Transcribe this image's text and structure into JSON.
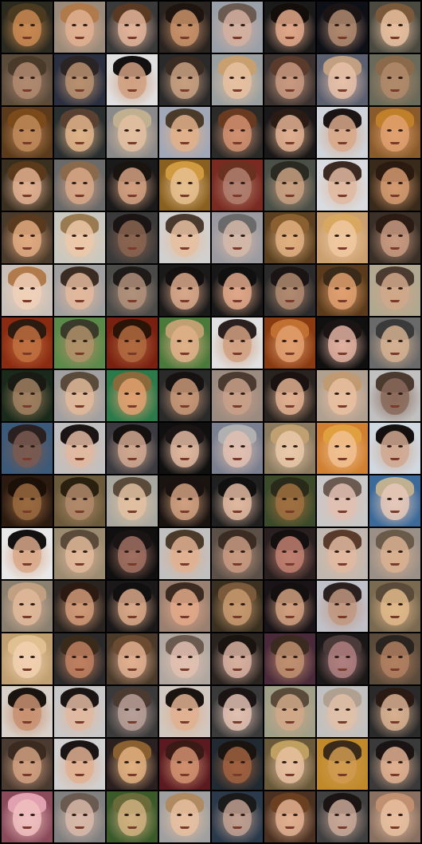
{
  "tiles": [
    {
      "bg": "#2b2a1e",
      "hair": "#4a3a1f",
      "skin": "#c98a52"
    },
    {
      "bg": "#9a8a7a",
      "hair": "#b07a4a",
      "skin": "#e0b090"
    },
    {
      "bg": "#3a3a3a",
      "hair": "#5a3a22",
      "skin": "#e2b49a"
    },
    {
      "bg": "#2a2420",
      "hair": "#1e1410",
      "skin": "#c9926a"
    },
    {
      "bg": "#9aa0a8",
      "hair": "#6a5a50",
      "skin": "#d4b0a0"
    },
    {
      "bg": "#1a1a1a",
      "hair": "#140e0a",
      "skin": "#e0a88a"
    },
    {
      "bg": "#0e1018",
      "hair": "#1a1414",
      "skin": "#b08a70"
    },
    {
      "bg": "#4a4a40",
      "hair": "#7a5a3a",
      "skin": "#e8c0a0"
    },
    {
      "bg": "#5a4a3a",
      "hair": "#4a3a2a",
      "skin": "#b08a70"
    },
    {
      "bg": "#2a3040",
      "hair": "#2a2424",
      "skin": "#b99070"
    },
    {
      "bg": "#e0e0e0",
      "hair": "#121010",
      "skin": "#d0a080"
    },
    {
      "bg": "#2a2a2a",
      "hair": "#3a2c22",
      "skin": "#c8a080"
    },
    {
      "bg": "#9aa0a0",
      "hair": "#c8a070",
      "skin": "#e6c0a0"
    },
    {
      "bg": "#3a3230",
      "hair": "#5a3a2a",
      "skin": "#c89a80"
    },
    {
      "bg": "#5a6070",
      "hair": "#c0a080",
      "skin": "#e6c0a8"
    },
    {
      "bg": "#6a6a5a",
      "hair": "#8a6a4a",
      "skin": "#b08a6a"
    },
    {
      "bg": "#5a3a1a",
      "hair": "#7a4a1a",
      "skin": "#c08a5a"
    },
    {
      "bg": "#2a3030",
      "hair": "#5a4030",
      "skin": "#e0b48a"
    },
    {
      "bg": "#8a8a8a",
      "hair": "#c0b090",
      "skin": "#e2c0a0"
    },
    {
      "bg": "#a0a8b8",
      "hair": "#4a3a2a",
      "skin": "#e0b08a"
    },
    {
      "bg": "#2a2a28",
      "hair": "#6a3a20",
      "skin": "#d09070"
    },
    {
      "bg": "#1a1818",
      "hair": "#2a1c14",
      "skin": "#e0b090"
    },
    {
      "bg": "#cfd4da",
      "hair": "#1a1414",
      "skin": "#d8a888"
    },
    {
      "bg": "#8a5a2a",
      "hair": "#c0802a",
      "skin": "#e0a070"
    },
    {
      "bg": "#3a3020",
      "hair": "#5a3a1a",
      "skin": "#e0b090"
    },
    {
      "bg": "#6a6a6a",
      "hair": "#8a6a4a",
      "skin": "#d8a888"
    },
    {
      "bg": "#1a1a1a",
      "hair": "#1a1410",
      "skin": "#d2a080"
    },
    {
      "bg": "#8a6020",
      "hair": "#d09a40",
      "skin": "#e6c090"
    },
    {
      "bg": "#7a2a20",
      "hair": "#6a3020",
      "skin": "#b08070"
    },
    {
      "bg": "#4a5048",
      "hair": "#2a2a22",
      "skin": "#c8a080"
    },
    {
      "bg": "#d8dce0",
      "hair": "#3a2a22",
      "skin": "#e0b8a0"
    },
    {
      "bg": "#3a2a1a",
      "hair": "#2a1a10",
      "skin": "#d49a70"
    },
    {
      "bg": "#4a3a2a",
      "hair": "#5a3a1e",
      "skin": "#e0aa80"
    },
    {
      "bg": "#c8c8c0",
      "hair": "#9a7a50",
      "skin": "#ecc8a8"
    },
    {
      "bg": "#3a3a3a",
      "hair": "#1a1414",
      "skin": "#8a6450"
    },
    {
      "bg": "#d0d0d0",
      "hair": "#4a3a2e",
      "skin": "#e6c0a0"
    },
    {
      "bg": "#9a9aa0",
      "hair": "#6a6a6a",
      "skin": "#d4b8a8"
    },
    {
      "bg": "#5a4020",
      "hair": "#8a6030",
      "skin": "#e0b080"
    },
    {
      "bg": "#caa070",
      "hair": "#d8a860",
      "skin": "#f0c8a0"
    },
    {
      "bg": "#3a3028",
      "hair": "#2a1c14",
      "skin": "#c89a80"
    },
    {
      "bg": "#c8c0b8",
      "hair": "#b07a4a",
      "skin": "#f0d0b8"
    },
    {
      "bg": "#a0a0a0",
      "hair": "#3a2c22",
      "skin": "#e2b89c"
    },
    {
      "bg": "#4a4a48",
      "hair": "#1e1a18",
      "skin": "#b0907a"
    },
    {
      "bg": "#1a1a1a",
      "hair": "#141010",
      "skin": "#d8a88a"
    },
    {
      "bg": "#181818",
      "hair": "#101010",
      "skin": "#e0a88a"
    },
    {
      "bg": "#2a2a2a",
      "hair": "#1a1414",
      "skin": "#b08a70"
    },
    {
      "bg": "#5a3a1a",
      "hair": "#3a2a1a",
      "skin": "#e0a070"
    },
    {
      "bg": "#b0a890",
      "hair": "#4a3a30",
      "skin": "#d0a88a"
    },
    {
      "bg": "#8a2a10",
      "hair": "#2a1a10",
      "skin": "#c07040"
    },
    {
      "bg": "#5a8a4a",
      "hair": "#3a3a2a",
      "skin": "#b0906a"
    },
    {
      "bg": "#7a2010",
      "hair": "#2a1408",
      "skin": "#b06a40"
    },
    {
      "bg": "#4a7a3a",
      "hair": "#c0a070",
      "skin": "#e0b08a"
    },
    {
      "bg": "#e0e0e0",
      "hair": "#2a2020",
      "skin": "#d0a080"
    },
    {
      "bg": "#8a3a10",
      "hair": "#c07030",
      "skin": "#e0a070"
    },
    {
      "bg": "#101010",
      "hair": "#1a1414",
      "skin": "#e0b0a0"
    },
    {
      "bg": "#6a6a6a",
      "hair": "#3a3a3a",
      "skin": "#d4b090"
    },
    {
      "bg": "#1a2a1a",
      "hair": "#1a1a14",
      "skin": "#a08060"
    },
    {
      "bg": "#a0a0a0",
      "hair": "#5a4a3a",
      "skin": "#e0b89a"
    },
    {
      "bg": "#2a7a4a",
      "hair": "#8a6a3a",
      "skin": "#e0a070"
    },
    {
      "bg": "#2a2a2a",
      "hair": "#161212",
      "skin": "#c89878"
    },
    {
      "bg": "#9a8a80",
      "hair": "#4a3a30",
      "skin": "#c8a088"
    },
    {
      "bg": "#2a2420",
      "hair": "#1a1210",
      "skin": "#e0b090"
    },
    {
      "bg": "#b0a090",
      "hair": "#c09a70",
      "skin": "#e8c0a0"
    },
    {
      "bg": "#c0c0c0",
      "hair": "#4a3a30",
      "skin": "#8a6a5a"
    },
    {
      "bg": "#3a5a7a",
      "hair": "#2a2020",
      "skin": "#7a5a50"
    },
    {
      "bg": "#c0c0c0",
      "hair": "#1a1414",
      "skin": "#e0b8a0"
    },
    {
      "bg": "#3a3a40",
      "hair": "#141010",
      "skin": "#d0a890"
    },
    {
      "bg": "#101010",
      "hair": "#1a1414",
      "skin": "#e0b8a0"
    },
    {
      "bg": "#7a8090",
      "hair": "#b0b0b0",
      "skin": "#e0c0b0"
    },
    {
      "bg": "#8a7a60",
      "hair": "#c0a070",
      "skin": "#e8c8a8"
    },
    {
      "bg": "#d08030",
      "hair": "#e0a040",
      "skin": "#f0c090"
    },
    {
      "bg": "#d0d8e0",
      "hair": "#141010",
      "skin": "#d0a890"
    },
    {
      "bg": "#2a1a10",
      "hair": "#1a1008",
      "skin": "#9a6a40"
    },
    {
      "bg": "#6a5a3a",
      "hair": "#2a2010",
      "skin": "#b08a6a"
    },
    {
      "bg": "#a8a8a0",
      "hair": "#5a4a3a",
      "skin": "#e0c0a0"
    },
    {
      "bg": "#1a1410",
      "hair": "#1a1210",
      "skin": "#d0a080"
    },
    {
      "bg": "#202020",
      "hair": "#101010",
      "skin": "#e0b8a0"
    },
    {
      "bg": "#3a4a2a",
      "hair": "#2a2a1a",
      "skin": "#a07040"
    },
    {
      "bg": "#c8c8c8",
      "hair": "#6a5a50",
      "skin": "#e0c0b0"
    },
    {
      "bg": "#3a6a9a",
      "hair": "#c0b090",
      "skin": "#e6c8b8"
    },
    {
      "bg": "#e8e8e8",
      "hair": "#121010",
      "skin": "#d8a888"
    },
    {
      "bg": "#9a8a70",
      "hair": "#5a4a3a",
      "skin": "#e0b89a"
    },
    {
      "bg": "#101010",
      "hair": "#1a1414",
      "skin": "#a07060"
    },
    {
      "bg": "#c0c0c0",
      "hair": "#4a3a2a",
      "skin": "#e0b090"
    },
    {
      "bg": "#5a5048",
      "hair": "#3a2c22",
      "skin": "#c89a80"
    },
    {
      "bg": "#2a2020",
      "hair": "#141010",
      "skin": "#c08070"
    },
    {
      "bg": "#c0b8b0",
      "hair": "#5a3a2a",
      "skin": "#e0b8a0"
    },
    {
      "bg": "#9a9088",
      "hair": "#6a5a4a",
      "skin": "#d8b090"
    },
    {
      "bg": "#8a8070",
      "hair": "#c0a080",
      "skin": "#e0b89a"
    },
    {
      "bg": "#2a2420",
      "hair": "#2a1a12",
      "skin": "#d09a78"
    },
    {
      "bg": "#1a1818",
      "hair": "#101010",
      "skin": "#d8a888"
    },
    {
      "bg": "#9a8070",
      "hair": "#3a2a20",
      "skin": "#e0a888"
    },
    {
      "bg": "#3a3020",
      "hair": "#7a5a3a",
      "skin": "#c89a70"
    },
    {
      "bg": "#1a1418",
      "hair": "#141010",
      "skin": "#d0a080"
    },
    {
      "bg": "#c0c0c8",
      "hair": "#2a2020",
      "skin": "#c09880"
    },
    {
      "bg": "#7a6a50",
      "hair": "#5a4a3a",
      "skin": "#e0b88a"
    },
    {
      "bg": "#c0a070",
      "hair": "#e0c090",
      "skin": "#f0d0b0"
    },
    {
      "bg": "#2a2a2a",
      "hair": "#3a2a1a",
      "skin": "#c08060"
    },
    {
      "bg": "#4a3a2a",
      "hair": "#6a4a30",
      "skin": "#e0b090"
    },
    {
      "bg": "#b0a8a0",
      "hair": "#6a5a50",
      "skin": "#e0c0b0"
    },
    {
      "bg": "#2a2420",
      "hair": "#1a1410",
      "skin": "#d8b0a0"
    },
    {
      "bg": "#4a2a3a",
      "hair": "#3a2a20",
      "skin": "#c09070"
    },
    {
      "bg": "#1a1818",
      "hair": "#4a3a3a",
      "skin": "#b08080"
    },
    {
      "bg": "#5a4a3a",
      "hair": "#2a2420",
      "skin": "#b08060"
    },
    {
      "bg": "#d8d0c8",
      "hair": "#1a1410",
      "skin": "#c89070"
    },
    {
      "bg": "#c8c8c8",
      "hair": "#1a1414",
      "skin": "#e0b8a0"
    },
    {
      "bg": "#3a3a3a",
      "hair": "#4a3a30",
      "skin": "#b8a098"
    },
    {
      "bg": "#d0c8c0",
      "hair": "#1a1410",
      "skin": "#e0b090"
    },
    {
      "bg": "#3a3a3a",
      "hair": "#1a1414",
      "skin": "#e0c0b0"
    },
    {
      "bg": "#a0a088",
      "hair": "#5a4a3a",
      "skin": "#d0a888"
    },
    {
      "bg": "#c0c0c0",
      "hair": "#b0a090",
      "skin": "#e0c0a8"
    },
    {
      "bg": "#2a2a2a",
      "hair": "#2a1a14",
      "skin": "#d8b090"
    },
    {
      "bg": "#4a3a30",
      "hair": "#3a2a20",
      "skin": "#d0a080"
    },
    {
      "bg": "#d0d0d0",
      "hair": "#1a1414",
      "skin": "#e0b090"
    },
    {
      "bg": "#2a2020",
      "hair": "#8a6030",
      "skin": "#e0b080"
    },
    {
      "bg": "#5a1a20",
      "hair": "#3a1a14",
      "skin": "#d09070"
    },
    {
      "bg": "#202a30",
      "hair": "#1a1410",
      "skin": "#a06040"
    },
    {
      "bg": "#6a5a3a",
      "hair": "#c0a060",
      "skin": "#e6c0a0"
    },
    {
      "bg": "#c08a2a",
      "hair": "#3a2a1a",
      "skin": "#d09a50"
    },
    {
      "bg": "#3a3a3a",
      "hair": "#1a1414",
      "skin": "#e0b090"
    },
    {
      "bg": "#8a4a5a",
      "hair": "#e0a0b0",
      "skin": "#f0c0c0"
    },
    {
      "bg": "#808080",
      "hair": "#6a5a50",
      "skin": "#d8b8a8"
    },
    {
      "bg": "#3a5a2a",
      "hair": "#6a6a3a",
      "skin": "#d0b080"
    },
    {
      "bg": "#a0a0a0",
      "hair": "#b08a60",
      "skin": "#e6c0a0"
    },
    {
      "bg": "#2a3a4a",
      "hair": "#1a1a1a",
      "skin": "#c0a090"
    },
    {
      "bg": "#4a3020",
      "hair": "#6a4020",
      "skin": "#e0b090"
    },
    {
      "bg": "#404040",
      "hair": "#1a1414",
      "skin": "#c8a898"
    },
    {
      "bg": "#8a7060",
      "hair": "#c09070",
      "skin": "#e8c0a0"
    }
  ]
}
